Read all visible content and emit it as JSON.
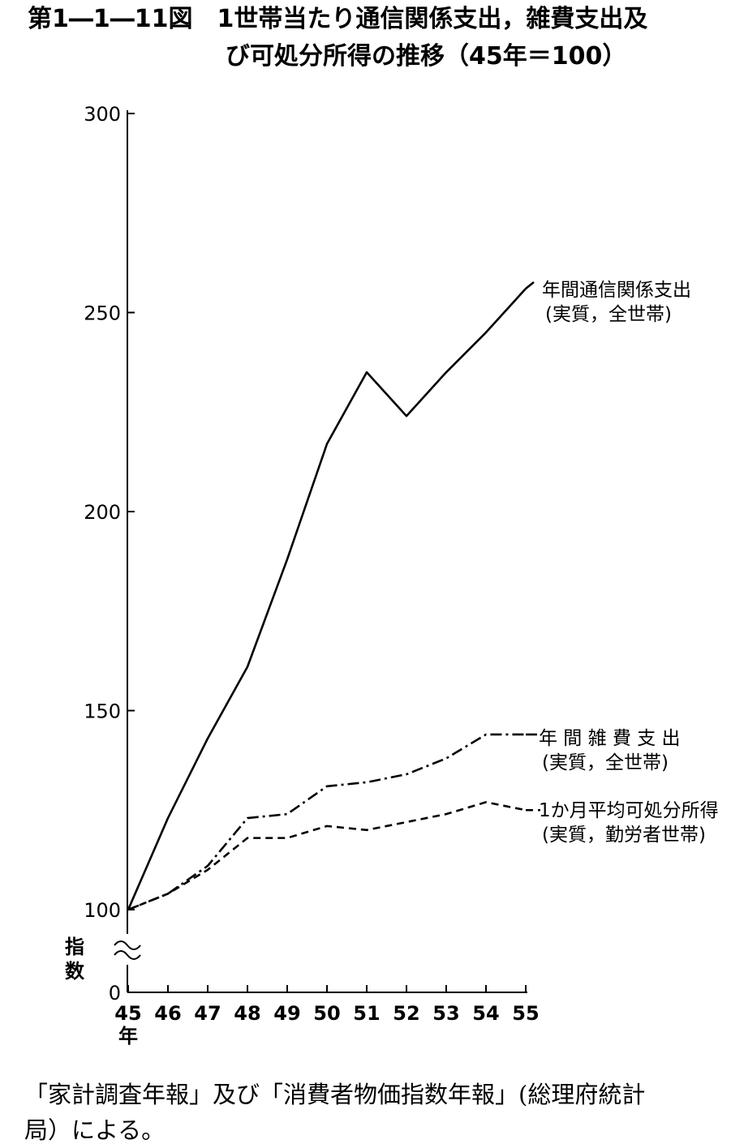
{
  "title_line1": "第1―1―11図　1世帯当たり通信関係支出，雑費支出及",
  "title_line2": "び可処分所得の推移（45年＝100）",
  "source_line1": "「家計調査年報」及び「消費者物価指数年報」(総理府統計",
  "source_line2": "局）による。",
  "chart_data": {
    "type": "line",
    "title": "1世帯当たり通信関係支出，雑費支出及び可処分所得の推移（45年＝100）",
    "x": [
      45,
      46,
      47,
      48,
      49,
      50,
      51,
      52,
      53,
      54,
      55
    ],
    "x_ticks": [
      "45",
      "46",
      "47",
      "48",
      "49",
      "50",
      "51",
      "52",
      "53",
      "54",
      "55"
    ],
    "xlabel": "年",
    "ylabel": "指数",
    "y_ticks": [
      0,
      100,
      150,
      200,
      250,
      300
    ],
    "y_axis_break": true,
    "ylim": [
      0,
      300
    ],
    "grid": false,
    "series": [
      {
        "name_line1": "年間通信関係支出",
        "name_line2": "(実質，全世帯)",
        "style": "solid",
        "values": [
          100,
          123,
          143,
          161,
          188,
          217,
          235,
          224,
          235,
          245,
          256
        ]
      },
      {
        "name_line1": "年 間 雑 費 支 出",
        "name_line2": "(実質，全世帯)",
        "style": "dashdot",
        "values": [
          100,
          104,
          111,
          123,
          124,
          131,
          132,
          134,
          138,
          144,
          144
        ]
      },
      {
        "name_line1": "1か月平均可処分所得",
        "name_line2": "(実質，勤労者世帯)",
        "style": "dashed",
        "values": [
          100,
          104,
          110,
          118,
          118,
          121,
          120,
          122,
          124,
          127,
          125
        ]
      }
    ],
    "colors": {
      "line": "#000000",
      "background": "#ffffff"
    }
  }
}
